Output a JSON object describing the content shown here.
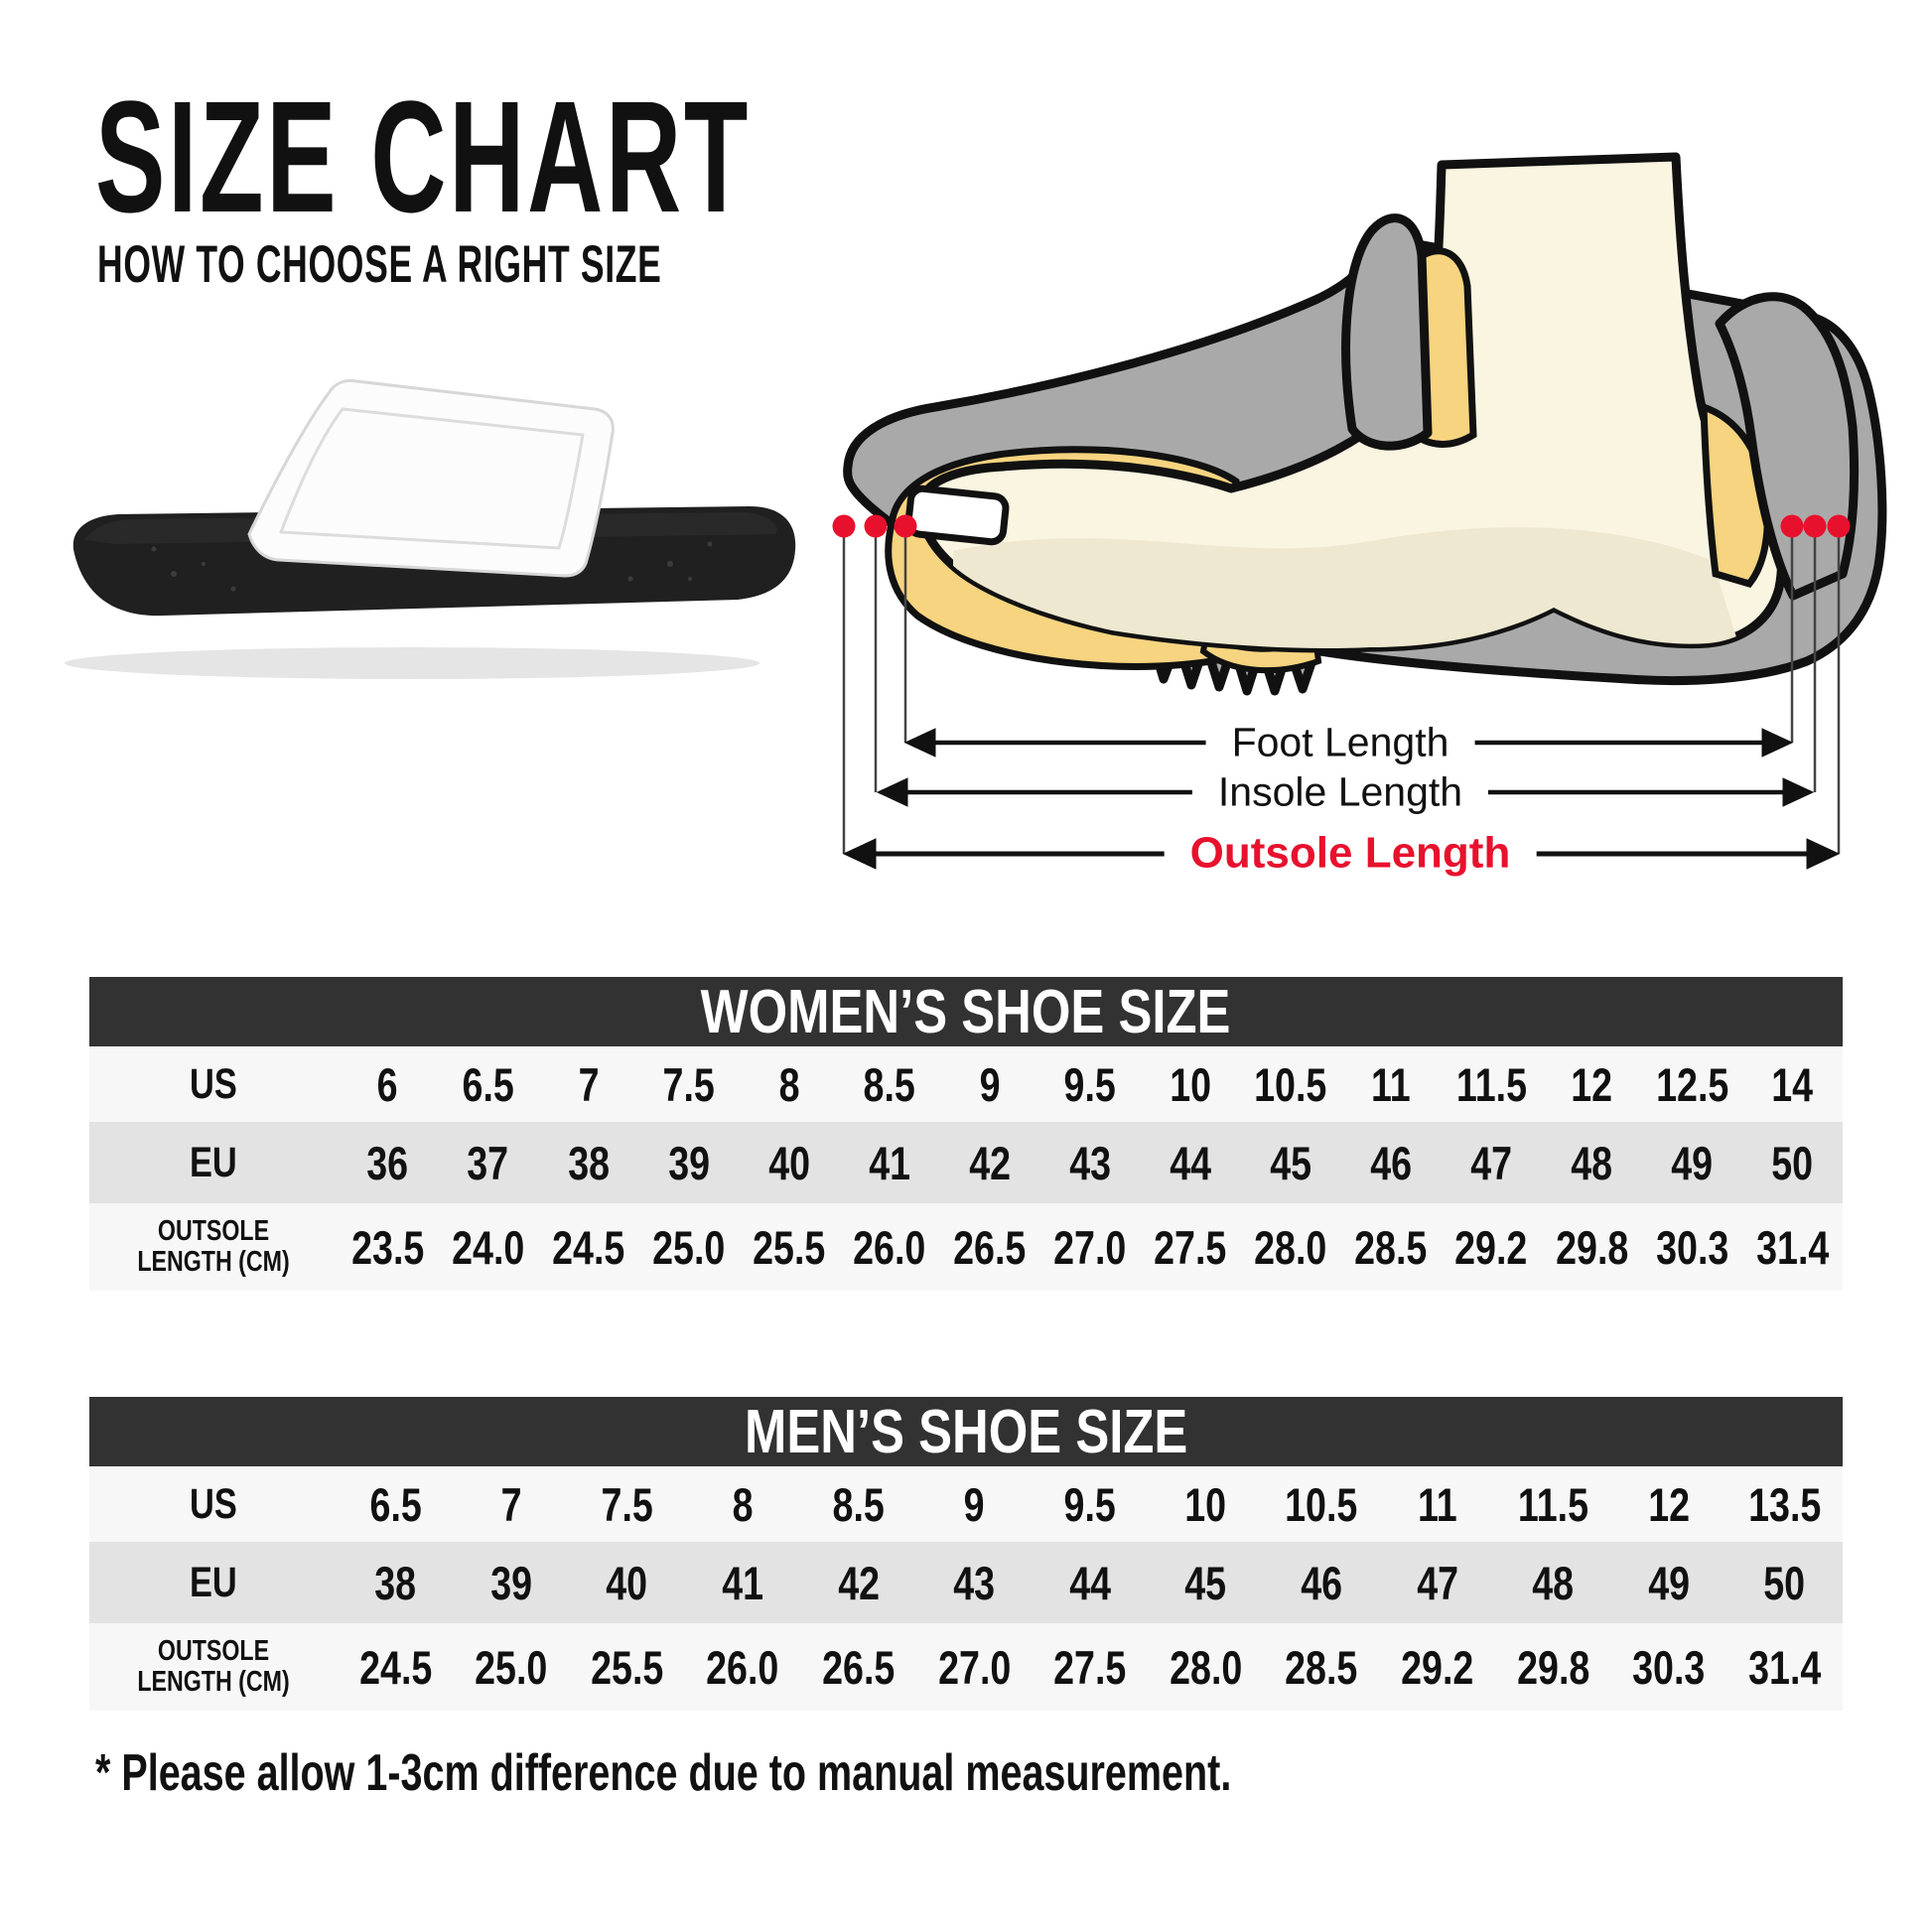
{
  "page": {
    "title": "SIZE CHART",
    "subtitle": "HOW TO CHOOSE A RIGHT SIZE",
    "note": "* Please allow 1-3cm difference due to manual measurement."
  },
  "diagram": {
    "foot_label": "Foot Length",
    "insole_label": "Insole Length",
    "outsole_label": "Outsole Length"
  },
  "colors": {
    "accent_red": "#e8112d",
    "table_header_bg": "#323232",
    "row_light": "#f7f7f7",
    "row_dark": "#e3e3e3",
    "shoe_gray": "#a9a9a9",
    "insole_yellow": "#f6d480",
    "foot_cream": "#faf5e0",
    "sole_black": "#202020"
  },
  "tables": [
    {
      "title": "WOMEN’S SHOE SIZE",
      "rows": [
        {
          "label": "US",
          "values": [
            "6",
            "6.5",
            "7",
            "7.5",
            "8",
            "8.5",
            "9",
            "9.5",
            "10",
            "10.5",
            "11",
            "11.5",
            "12",
            "12.5",
            "14"
          ]
        },
        {
          "label": "EU",
          "values": [
            "36",
            "37",
            "38",
            "39",
            "40",
            "41",
            "42",
            "43",
            "44",
            "45",
            "46",
            "47",
            "48",
            "49",
            "50"
          ]
        },
        {
          "label_lines": [
            "OUTSOLE",
            "LENGTH (CM)"
          ],
          "values": [
            "23.5",
            "24.0",
            "24.5",
            "25.0",
            "25.5",
            "26.0",
            "26.5",
            "27.0",
            "27.5",
            "28.0",
            "28.5",
            "29.2",
            "29.8",
            "30.3",
            "31.4"
          ]
        }
      ]
    },
    {
      "title": "MEN’S SHOE SIZE",
      "rows": [
        {
          "label": "US",
          "values": [
            "6.5",
            "7",
            "7.5",
            "8",
            "8.5",
            "9",
            "9.5",
            "10",
            "10.5",
            "11",
            "11.5",
            "12",
            "13.5"
          ]
        },
        {
          "label": "EU",
          "values": [
            "38",
            "39",
            "40",
            "41",
            "42",
            "43",
            "44",
            "45",
            "46",
            "47",
            "48",
            "49",
            "50"
          ]
        },
        {
          "label_lines": [
            "OUTSOLE",
            "LENGTH (CM)"
          ],
          "values": [
            "24.5",
            "25.0",
            "25.5",
            "26.0",
            "26.5",
            "27.0",
            "27.5",
            "28.0",
            "28.5",
            "29.2",
            "29.8",
            "30.3",
            "31.4"
          ]
        }
      ]
    }
  ]
}
